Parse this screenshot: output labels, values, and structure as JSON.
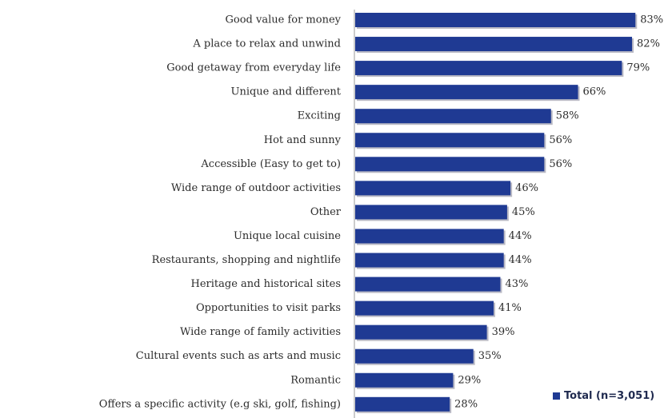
{
  "chart_data": {
    "type": "bar",
    "orientation": "horizontal",
    "categories": [
      "Good value for money",
      "A place to relax and unwind",
      "Good getaway from everyday life",
      "Unique and different",
      "Exciting",
      "Hot and sunny",
      "Accessible (Easy to get to)",
      "Wide range of outdoor activities",
      "Other",
      "Unique local cuisine",
      "Restaurants, shopping and nightlife",
      "Heritage and historical sites",
      "Opportunities to visit parks",
      "Wide range of family activities",
      "Cultural events such as arts and music",
      "Romantic",
      "Offers a specific activity (e.g ski, golf, fishing)"
    ],
    "series": [
      {
        "name": "Total (n=3,051)",
        "values": [
          83,
          82,
          79,
          66,
          58,
          56,
          56,
          46,
          45,
          44,
          44,
          43,
          41,
          39,
          35,
          29,
          28
        ],
        "labels": [
          "83%",
          "82%",
          "79%",
          "66%",
          "58%",
          "56%",
          "56%",
          "46%",
          "45%",
          "44%",
          "44%",
          "43%",
          "41%",
          "39%",
          "35%",
          "29%",
          "28%"
        ],
        "color": "#1f3a93"
      }
    ],
    "xlim": [
      0,
      100
    ],
    "grid": false,
    "legend_position": "bottom-right"
  }
}
